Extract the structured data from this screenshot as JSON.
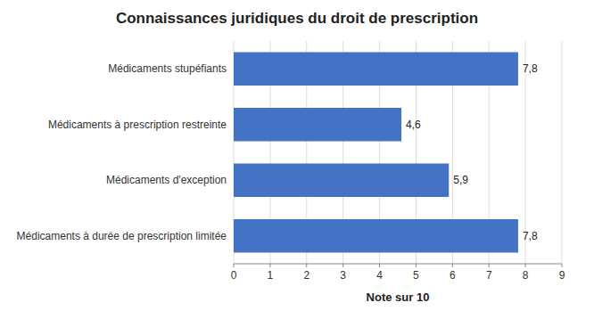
{
  "chart_data": {
    "type": "bar",
    "orientation": "horizontal",
    "title": "Connaissances juridiques du droit de prescription",
    "categories": [
      "Médicaments à durée de prescription limitée",
      "Médicaments d'exception",
      "Médicaments à prescription restreinte",
      "Médicaments stupéfiants"
    ],
    "values": [
      7.8,
      5.9,
      4.6,
      7.8
    ],
    "value_labels": [
      "7,8",
      "5,9",
      "4,6",
      "7,8"
    ],
    "data_labels": true,
    "color": "#4472C4",
    "xlabel": "Note sur 10",
    "xlim": [
      0,
      9
    ],
    "xticks": [
      0,
      1,
      2,
      3,
      4,
      5,
      6,
      7,
      8,
      9
    ],
    "grid": true
  }
}
